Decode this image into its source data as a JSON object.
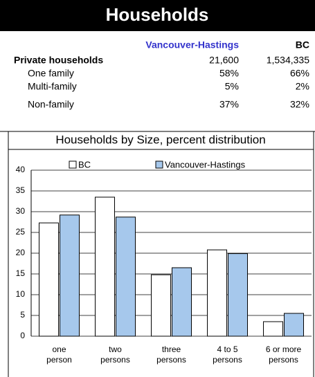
{
  "header": {
    "title": "Households"
  },
  "table": {
    "columns": [
      "Vancouver-Hastings",
      "BC"
    ],
    "rows": [
      [
        "Private households",
        "21,600",
        "1,534,335"
      ],
      [
        "One family",
        "58%",
        "66%"
      ],
      [
        "Multi-family",
        "5%",
        "2%"
      ],
      [
        "Non-family",
        "37%",
        "32%"
      ]
    ]
  },
  "chart_data": {
    "type": "bar",
    "title": "Households by Size, percent distribution",
    "categories": [
      "one person",
      "two persons",
      "three persons",
      "4 to 5 persons",
      "6 or more persons"
    ],
    "series": [
      {
        "name": "BC",
        "color": "#ffffff",
        "values": [
          27.3,
          33.5,
          14.8,
          20.8,
          3.5
        ]
      },
      {
        "name": "Vancouver-Hastings",
        "color": "#a6c8ec",
        "values": [
          29.2,
          28.7,
          16.5,
          19.9,
          5.5
        ]
      }
    ],
    "ylim": [
      0,
      40
    ],
    "yticks": [
      0,
      5,
      10,
      15,
      20,
      25,
      30,
      35,
      40
    ],
    "grid": true,
    "legend": "top"
  }
}
